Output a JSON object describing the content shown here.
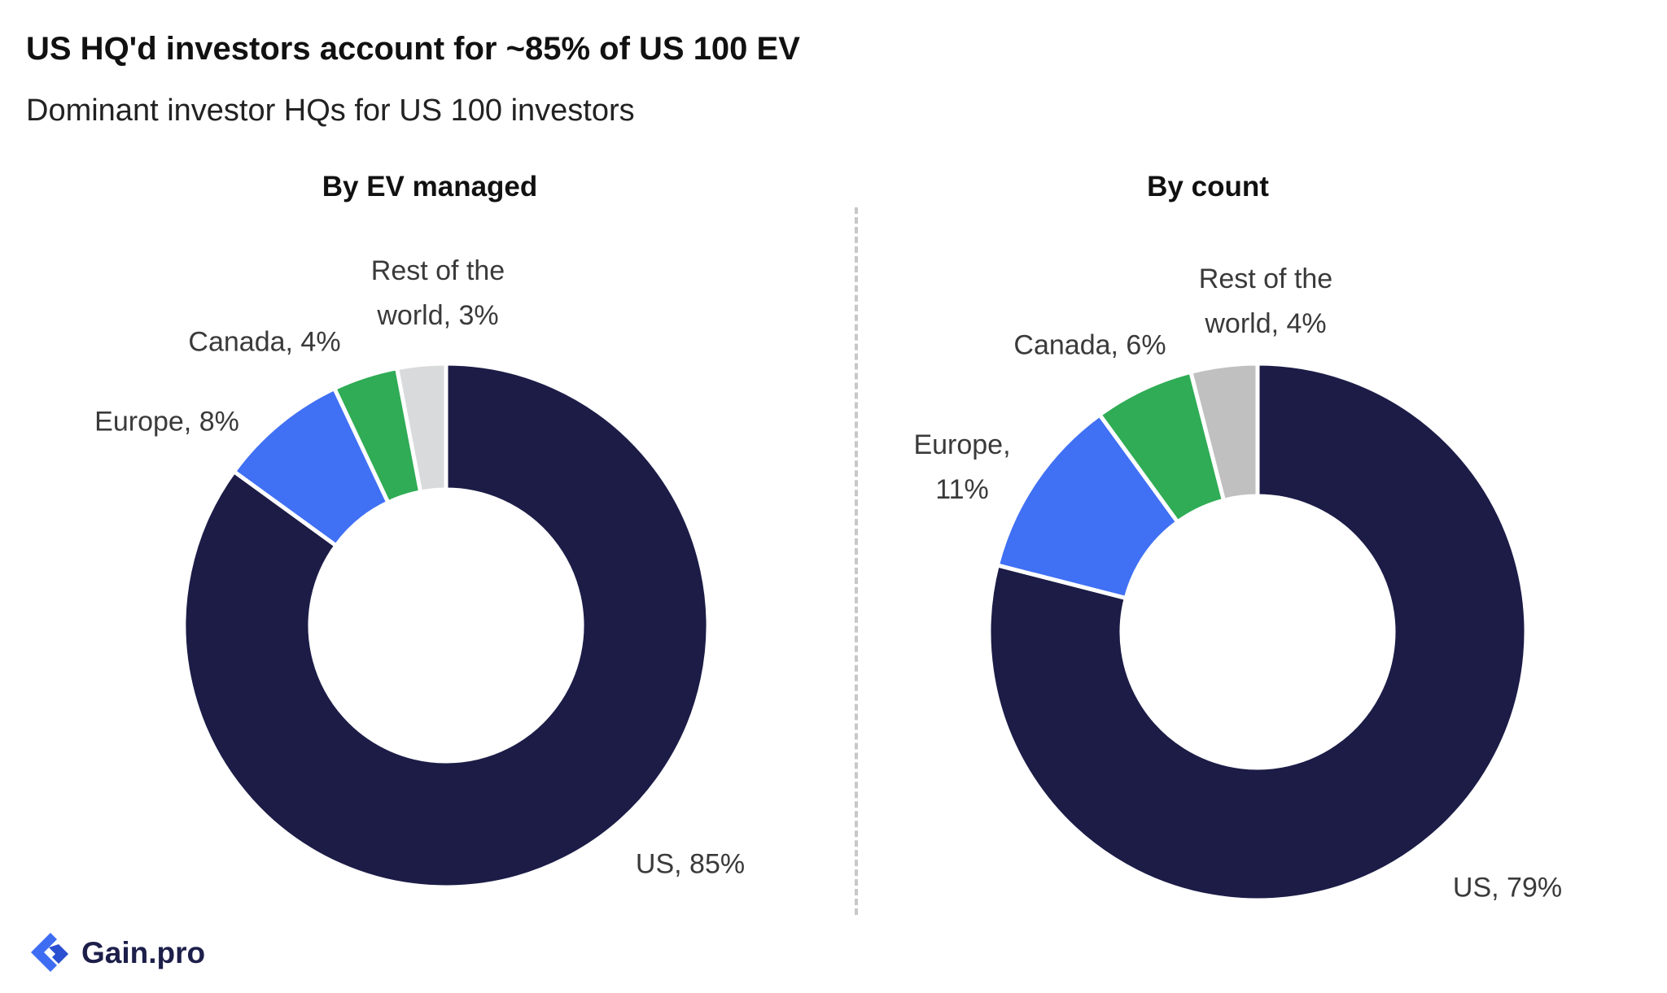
{
  "title": "US HQ'd investors account for ~85% of US 100 EV",
  "subtitle": "Dominant investor HQs for US 100 investors",
  "brand": {
    "name": "Gain.pro",
    "color": "#3e6cf2"
  },
  "colors": {
    "US": "#1c1c47",
    "Europe": "#4070f4",
    "Canada": "#2fac55",
    "Rest of the world": "#d9dadc"
  },
  "chart_data": [
    {
      "type": "pie",
      "title": "By EV managed",
      "categories": [
        "US",
        "Europe",
        "Canada",
        "Rest of the world"
      ],
      "values": [
        85,
        8,
        4,
        3
      ],
      "labels": [
        "US, 85%",
        "Europe, 8%",
        "Canada, 4%",
        "Rest of the world, 3%"
      ],
      "label_lines": [
        [
          "US, 85%"
        ],
        [
          "Europe, 8%"
        ],
        [
          "Canada, 4%"
        ],
        [
          "Rest of the",
          "world, 3%"
        ]
      ],
      "colors": [
        "#1c1c47",
        "#4070f4",
        "#2fac55",
        "#d9dadc"
      ],
      "donut": true
    },
    {
      "type": "pie",
      "title": "By count",
      "categories": [
        "US",
        "Europe",
        "Canada",
        "Rest of the world"
      ],
      "values": [
        79,
        11,
        6,
        4
      ],
      "labels": [
        "US, 79%",
        "Europe, 11%",
        "Canada, 6%",
        "Rest of the world, 4%"
      ],
      "label_lines": [
        [
          "US, 79%"
        ],
        [
          "Europe,",
          "11%"
        ],
        [
          "Canada, 6%"
        ],
        [
          "Rest of the",
          "world, 4%"
        ]
      ],
      "colors": [
        "#1c1c47",
        "#4070f4",
        "#2fac55",
        "#c0c0c0"
      ],
      "donut": true
    }
  ]
}
